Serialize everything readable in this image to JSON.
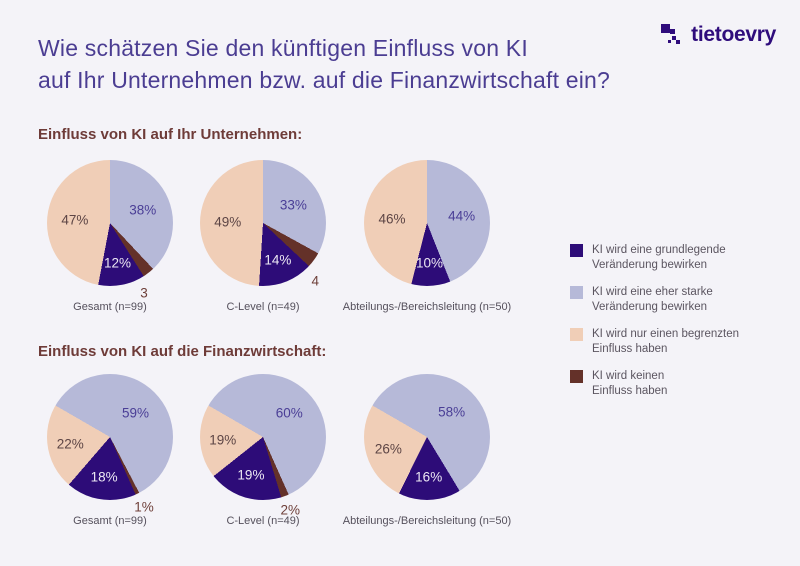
{
  "page": {
    "background": "#f4f3f8"
  },
  "header": {
    "title_line1": "Wie schätzen Sie den künftigen Einfluss von KI",
    "title_line2": "auf Ihr Unternehmen bzw. auf die Finanzwirtschaft ein?",
    "logo_text": "tietoevry"
  },
  "legend": {
    "items": [
      {
        "key": "grundlegend",
        "line1": "KI wird eine grundlegende",
        "line2": "Veränderung bewirken"
      },
      {
        "key": "stark",
        "line1": "KI wird eine eher starke",
        "line2": "Veränderung bewirken"
      },
      {
        "key": "begrenzt",
        "line1": "KI wird nur einen begrenzten",
        "line2": "Einfluss haben"
      },
      {
        "key": "kein",
        "line1": "KI wird keinen",
        "line2": "Einfluss haben"
      }
    ]
  },
  "chart_data": {
    "type": "pie",
    "colors": {
      "grundlegend": "#2d0c78",
      "stark": "#b6b9d8",
      "begrenzt": "#f0ceb7",
      "kein": "#643129"
    },
    "label_colors": {
      "grundlegend": "#ece8f3",
      "stark": "#4a3e96",
      "begrenzt": "#5d4545",
      "kein": "#6e3f39"
    },
    "categories": {
      "grundlegend": "KI wird eine grundlegende Veränderung bewirken",
      "stark": "KI wird eine eher starke Veränderung bewirken",
      "begrenzt": "KI wird nur einen begrenzten Einfluss haben",
      "kein": "KI wird keinen Einfluss haben"
    },
    "sections": [
      {
        "heading": "Einfluss von KI auf Ihr Unternehmen:",
        "start_angle": 0,
        "outside_nudge_deg": 12,
        "pies": [
          {
            "caption": "Gesamt (n=99)",
            "slices": [
              {
                "key": "stark",
                "value": 38,
                "label": "38%",
                "pos": "inside"
              },
              {
                "key": "kein",
                "value": 3,
                "label": "3",
                "pos": "outside"
              },
              {
                "key": "grundlegend",
                "value": 12,
                "label": "12%",
                "pos": "inside"
              },
              {
                "key": "begrenzt",
                "value": 47,
                "label": "47%",
                "pos": "inside"
              }
            ]
          },
          {
            "caption": "C-Level (n=49)",
            "slices": [
              {
                "key": "stark",
                "value": 33,
                "label": "33%",
                "pos": "inside"
              },
              {
                "key": "kein",
                "value": 4,
                "label": "4",
                "pos": "outside"
              },
              {
                "key": "grundlegend",
                "value": 14,
                "label": "14%",
                "pos": "inside"
              },
              {
                "key": "begrenzt",
                "value": 49,
                "label": "49%",
                "pos": "inside"
              }
            ]
          },
          {
            "caption": "Abteilungs-/Bereichsleitung (n=50)",
            "slices": [
              {
                "key": "stark",
                "value": 44,
                "label": "44%",
                "pos": "inside"
              },
              {
                "key": "grundlegend",
                "value": 10,
                "label": "10%",
                "pos": "inside"
              },
              {
                "key": "begrenzt",
                "value": 46,
                "label": "46%",
                "pos": "inside"
              }
            ]
          }
        ]
      },
      {
        "heading": "Einfluss von KI auf die Finanzwirtschaft:",
        "start_angle": -60,
        "outside_nudge_deg": 0,
        "pies": [
          {
            "caption": "Gesamt (n=99)",
            "slices": [
              {
                "key": "stark",
                "value": 59,
                "label": "59%",
                "pos": "inside"
              },
              {
                "key": "kein",
                "value": 1,
                "label": "1%",
                "pos": "outside"
              },
              {
                "key": "grundlegend",
                "value": 18,
                "label": "18%",
                "pos": "inside"
              },
              {
                "key": "begrenzt",
                "value": 22,
                "label": "22%",
                "pos": "inside"
              }
            ]
          },
          {
            "caption": "C-Level (n=49)",
            "slices": [
              {
                "key": "stark",
                "value": 60,
                "label": "60%",
                "pos": "inside"
              },
              {
                "key": "kein",
                "value": 2,
                "label": "2%",
                "pos": "outside"
              },
              {
                "key": "grundlegend",
                "value": 19,
                "label": "19%",
                "pos": "inside"
              },
              {
                "key": "begrenzt",
                "value": 19,
                "label": "19%",
                "pos": "inside"
              }
            ]
          },
          {
            "caption": "Abteilungs-/Bereichsleitung (n=50)",
            "slices": [
              {
                "key": "stark",
                "value": 58,
                "label": "58%",
                "pos": "inside"
              },
              {
                "key": "grundlegend",
                "value": 16,
                "label": "16%",
                "pos": "inside"
              },
              {
                "key": "begrenzt",
                "value": 26,
                "label": "26%",
                "pos": "inside"
              }
            ]
          }
        ]
      }
    ]
  }
}
